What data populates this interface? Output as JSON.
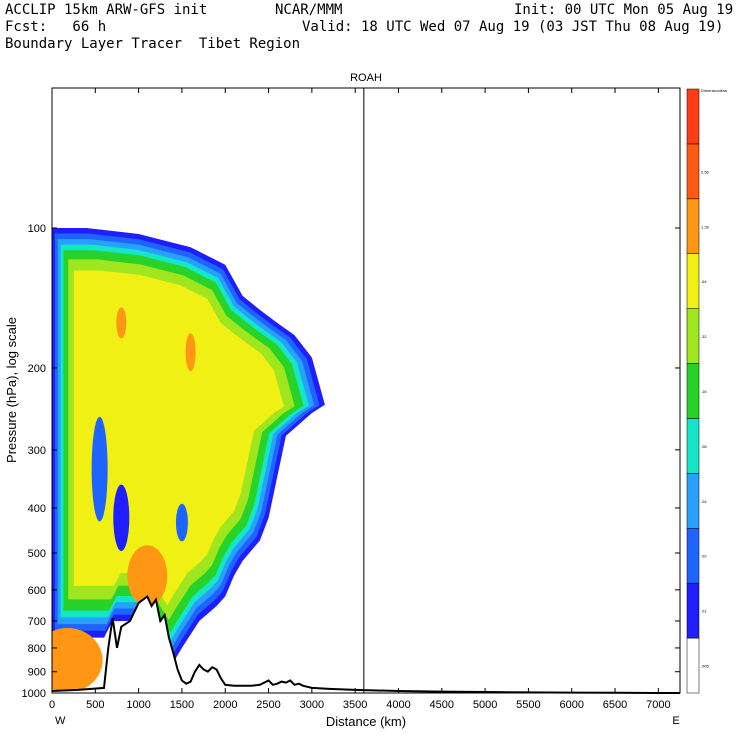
{
  "header": {
    "title_left": "ACCLIP 15km ARW-GFS init",
    "org": "NCAR/MMM",
    "init": "Init: 00 UTC Mon 05 Aug 19",
    "fcst": "Fcst:   66 h",
    "valid": "Valid: 18 UTC Wed 07 Aug 19 (03 JST Thu 08 Aug 19)",
    "field": "Boundary Layer Tracer  Tibet Region"
  },
  "chart_data": {
    "type": "heatmap",
    "title": "ROAH",
    "xlabel": "Distance (km)",
    "ylabel": "Pressure (hPa), log scale",
    "x_range": [
      0,
      7250
    ],
    "y_range_hPa": [
      1000,
      50
    ],
    "y_scale": "log",
    "x_ticks": [
      0,
      500,
      1000,
      1500,
      2000,
      2500,
      3000,
      3500,
      4000,
      4500,
      5000,
      5500,
      6000,
      6500,
      7000
    ],
    "y_ticks": [
      1000,
      900,
      800,
      700,
      600,
      500,
      400,
      300,
      200,
      100
    ],
    "left_end_label": "W",
    "right_end_label": "E",
    "marker_line_x_km": 3600,
    "colorbar": {
      "top_label": "Dimensionless",
      "levels": [
        ".005",
        ".01",
        ".02",
        ".04",
        ".08",
        ".16",
        ".32",
        ".64",
        "1.28",
        "2.56"
      ],
      "colors": [
        "#ffffff",
        "#1e1eff",
        "#1e64ff",
        "#28a0ff",
        "#14e6c8",
        "#28d228",
        "#a0e61e",
        "#f0f014",
        "#ff9614",
        "#ff5a14",
        "#ff3c14"
      ]
    },
    "plume_extent": {
      "x_km": [
        0,
        3150
      ],
      "top_hPa": 100
    },
    "terrain_profile": {
      "x_km": [
        0,
        300,
        600,
        650,
        700,
        750,
        800,
        900,
        1000,
        1100,
        1150,
        1200,
        1250,
        1300,
        1350,
        1400,
        1450,
        1500,
        1550,
        1600,
        1650,
        1700,
        1750,
        1800,
        1850,
        1900,
        1950,
        2000,
        2100,
        2200,
        2300,
        2400,
        2500,
        2550,
        2600,
        2650,
        2700,
        2750,
        2800,
        2850,
        2900,
        3000,
        3200,
        3500,
        4000,
        4500,
        5000,
        5500,
        6000,
        6500,
        7000,
        7250
      ],
      "p_hPa": [
        990,
        985,
        975,
        800,
        690,
        800,
        720,
        700,
        640,
        620,
        650,
        630,
        700,
        680,
        760,
        820,
        890,
        940,
        955,
        945,
        900,
        870,
        890,
        900,
        880,
        890,
        930,
        960,
        965,
        965,
        965,
        960,
        940,
        960,
        955,
        945,
        950,
        940,
        960,
        955,
        965,
        975,
        980,
        985,
        990,
        993,
        995,
        997,
        998,
        999,
        1000,
        1000
      ]
    }
  }
}
